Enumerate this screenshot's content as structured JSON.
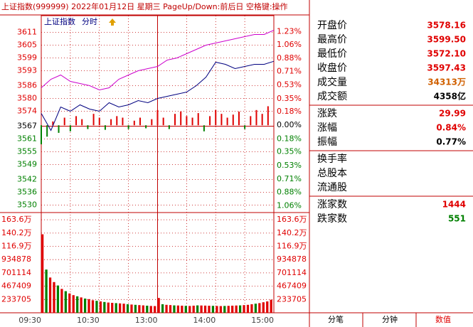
{
  "header": {
    "title": "上证指数(999999)",
    "date": "2022年01月12日",
    "weekday": "星期三",
    "hint": "PageUp/Down:前后日 空格键:操作"
  },
  "toolbar": {
    "name": "上证指数",
    "mode": "分时"
  },
  "chart_data": [
    {
      "type": "line",
      "x": [
        0,
        10,
        20,
        30,
        40,
        50,
        60,
        70,
        80,
        90,
        100,
        110,
        120,
        130,
        140,
        150,
        160,
        170,
        180,
        190,
        200,
        210,
        220,
        230,
        240
      ],
      "series": [
        {
          "color": "#000080",
          "values": [
            3573,
            3565,
            3576,
            3574,
            3577,
            3575,
            3574,
            3578,
            3576,
            3577,
            3579,
            3578,
            3580,
            3581,
            3582,
            3583,
            3586,
            3590,
            3597,
            3596,
            3594,
            3595,
            3596,
            3596,
            3597.43
          ]
        },
        {
          "color": "#cc00cc",
          "values": [
            3585,
            3589,
            3591,
            3588,
            3587,
            3586,
            3584,
            3585,
            3589,
            3591,
            3593,
            3594,
            3595,
            3598,
            3599,
            3601,
            3603,
            3605,
            3606,
            3607,
            3608,
            3609,
            3610,
            3610,
            3612
          ]
        }
      ],
      "bars": {
        "x": [
          0,
          6,
          12,
          18,
          24,
          30,
          36,
          42,
          48,
          54,
          60,
          66,
          72,
          78,
          84,
          90,
          96,
          102,
          108,
          114,
          120,
          126,
          132,
          138,
          144,
          150,
          156,
          162,
          168,
          174,
          180,
          186,
          192,
          198,
          204,
          210,
          216,
          222,
          228,
          234
        ],
        "values": [
          -0.25,
          -0.15,
          0.05,
          -0.1,
          0.1,
          -0.08,
          0.12,
          0.08,
          -0.05,
          0.15,
          0.1,
          -0.06,
          0.08,
          0.12,
          0.1,
          -0.05,
          0.06,
          0.1,
          -0.04,
          0.08,
          0.2,
          0.1,
          -0.05,
          0.15,
          0.18,
          0.12,
          0.1,
          0.16,
          -0.08,
          0.12,
          0.2,
          0.15,
          0.1,
          0.14,
          0.18,
          -0.05,
          0.12,
          0.2,
          0.15,
          0.25
        ],
        "up_color": "#e00000",
        "down_color": "#008000",
        "axis": "y2"
      },
      "xlim": [
        0,
        240
      ],
      "xticks": [
        0,
        30,
        60,
        90,
        120,
        150,
        180,
        210,
        240
      ],
      "ylim": [
        3527.5,
        3614.5
      ],
      "yticks": [
        3611,
        3605,
        3599,
        3593,
        3586,
        3580,
        3574,
        3567,
        3561,
        3555,
        3549,
        3542,
        3536,
        3530
      ],
      "y2lim": [
        -1.12,
        1.32
      ],
      "y2ticks": [
        {
          "value": 1.23,
          "label": "1.23%"
        },
        {
          "value": 1.06,
          "label": "1.06%"
        },
        {
          "value": 0.88,
          "label": "0.88%"
        },
        {
          "value": 0.71,
          "label": "0.71%"
        },
        {
          "value": 0.53,
          "label": "0.53%"
        },
        {
          "value": 0.35,
          "label": "0.35%"
        },
        {
          "value": 0.18,
          "label": "0.18%"
        },
        {
          "value": 0,
          "label": "0.00%"
        },
        {
          "value": -0.18,
          "label": "0.18%"
        },
        {
          "value": -0.35,
          "label": "0.35%"
        },
        {
          "value": -0.53,
          "label": "0.53%"
        },
        {
          "value": -0.71,
          "label": "0.71%"
        },
        {
          "value": -0.88,
          "label": "0.88%"
        },
        {
          "value": -1.06,
          "label": "1.06%"
        }
      ],
      "grid": true
    },
    {
      "type": "bar",
      "x": [
        0,
        4,
        8,
        12,
        16,
        20,
        24,
        28,
        32,
        36,
        40,
        44,
        48,
        52,
        56,
        60,
        64,
        68,
        72,
        76,
        80,
        84,
        88,
        92,
        96,
        100,
        104,
        108,
        112,
        116,
        120,
        124,
        128,
        132,
        136,
        140,
        144,
        148,
        152,
        156,
        160,
        164,
        168,
        172,
        176,
        180,
        184,
        188,
        192,
        196,
        200,
        204,
        208,
        212,
        216,
        220,
        224,
        228,
        232,
        236
      ],
      "values": [
        1380000,
        760000,
        620000,
        540000,
        480000,
        420000,
        380000,
        340000,
        310000,
        290000,
        270000,
        250000,
        240000,
        220000,
        210000,
        200000,
        190000,
        180000,
        175000,
        170000,
        165000,
        160000,
        150000,
        145000,
        140000,
        135000,
        130000,
        125000,
        120000,
        118000,
        260000,
        150000,
        140000,
        135000,
        130000,
        128000,
        125000,
        122000,
        120000,
        125000,
        130000,
        128000,
        126000,
        124000,
        122000,
        120000,
        118000,
        120000,
        122000,
        125000,
        128000,
        130000,
        135000,
        140000,
        150000,
        160000,
        170000,
        185000,
        200000,
        230000
      ],
      "colors": [
        "#e00000",
        "#008000",
        "#e00000",
        "#e00000",
        "#008000",
        "#e00000",
        "#008000",
        "#e00000",
        "#e00000",
        "#008000",
        "#e00000",
        "#008000",
        "#e00000",
        "#e00000",
        "#008000",
        "#e00000",
        "#008000",
        "#e00000",
        "#e00000",
        "#008000",
        "#e00000",
        "#e00000",
        "#008000",
        "#e00000",
        "#008000",
        "#e00000",
        "#e00000",
        "#008000",
        "#e00000",
        "#e00000",
        "#e00000",
        "#008000",
        "#e00000",
        "#e00000",
        "#008000",
        "#e00000",
        "#e00000",
        "#008000",
        "#e00000",
        "#e00000",
        "#008000",
        "#e00000",
        "#e00000",
        "#e00000",
        "#008000",
        "#e00000",
        "#e00000",
        "#008000",
        "#e00000",
        "#e00000",
        "#e00000",
        "#008000",
        "#e00000",
        "#e00000",
        "#e00000",
        "#008000",
        "#e00000",
        "#e00000",
        "#e00000",
        "#e00000"
      ],
      "xlim": [
        0,
        240
      ],
      "xticks": [
        {
          "value": 0,
          "label": "09:30"
        },
        {
          "value": 60,
          "label": "10:30"
        },
        {
          "value": 120,
          "label": "13:00"
        },
        {
          "value": 180,
          "label": "14:00"
        },
        {
          "value": 240,
          "label": "15:00"
        }
      ],
      "ylim": [
        0,
        1750000
      ],
      "yticks": [
        {
          "value": 1636000,
          "label": "163.6万"
        },
        {
          "value": 1402000,
          "label": "140.2万"
        },
        {
          "value": 1169000,
          "label": "116.9万"
        },
        934878,
        701114,
        467409,
        233705
      ]
    }
  ],
  "panel": {
    "groups": [
      [
        {
          "label": "开盘价",
          "value": "3578.16",
          "color": "#e00000"
        },
        {
          "label": "最高价",
          "value": "3599.50",
          "color": "#e00000"
        },
        {
          "label": "最低价",
          "value": "3572.10",
          "color": "#e00000"
        },
        {
          "label": "收盘价",
          "value": "3597.43",
          "color": "#e00000"
        },
        {
          "label": "成交量",
          "value": "34313万",
          "color": "#d06000"
        },
        {
          "label": "成交额",
          "value": "4358亿",
          "color": "#000000"
        }
      ],
      [
        {
          "label": "涨跌",
          "value": "29.99",
          "color": "#e00000"
        },
        {
          "label": "涨幅",
          "value": "0.84%",
          "color": "#e00000"
        },
        {
          "label": "振幅",
          "value": "0.77%",
          "color": "#000000"
        }
      ],
      [
        {
          "label": "换手率"
        },
        {
          "label": "总股本"
        },
        {
          "label": "流通股"
        }
      ],
      [
        {
          "label": "涨家数",
          "value": "1444",
          "color": "#e00000"
        },
        {
          "label": "跌家数",
          "value": "551",
          "color": "#008000"
        }
      ]
    ]
  },
  "tabs": [
    "分笔",
    "分钟",
    "数值"
  ],
  "active_tab": 2
}
